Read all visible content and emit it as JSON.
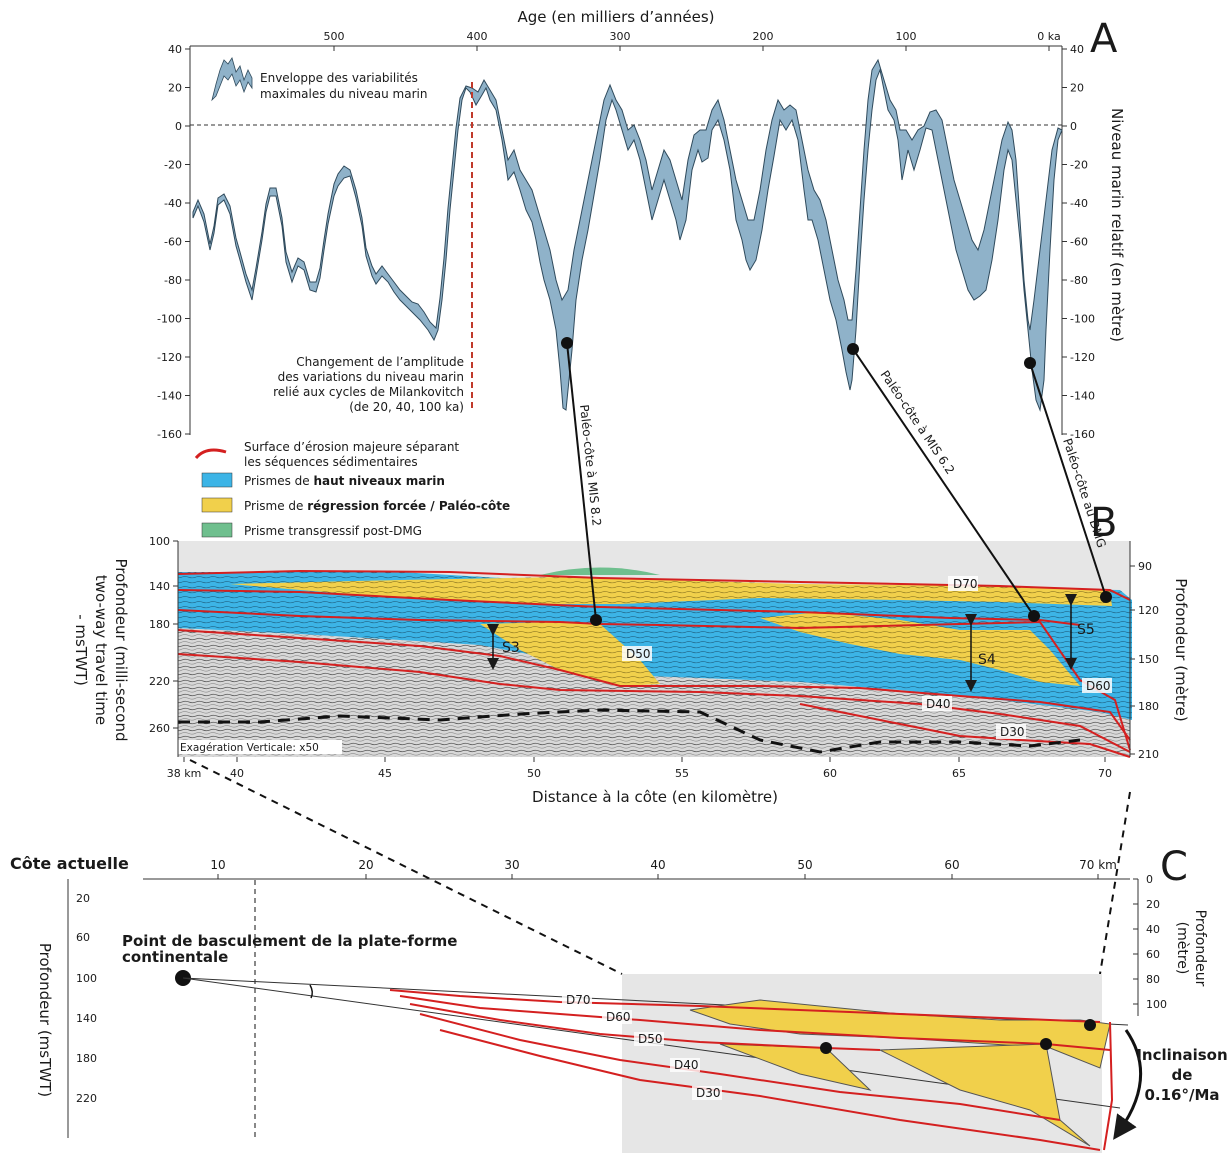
{
  "panel_a": {
    "letter": "A",
    "top_axis_title": "Age (en milliers d’années)",
    "top_ticks": [
      "500",
      "400",
      "300",
      "200",
      "100",
      "0 ka"
    ],
    "left_ticks": [
      "40",
      "20",
      "0",
      "-20",
      "-40",
      "-60",
      "-80",
      "-100",
      "-120",
      "-140",
      "-160"
    ],
    "right_ticks": [
      "40",
      "20",
      "0",
      "-20",
      "-40",
      "-60",
      "-80",
      "-100",
      "-120",
      "-140",
      "-160"
    ],
    "right_axis_title": "Niveau marin relatif (en mètre)",
    "envelope_legend": [
      "Enveloppe des variabilités",
      "maximales du niveau marin"
    ],
    "milankovitch_note": [
      "Changement de l’amplitude",
      "des variations du niveau marin",
      "relié aux cycles de Milankovitch",
      "(de 20, 40, 100 ka)"
    ],
    "colors": {
      "envelope": "#8fb2c9",
      "marker_line": "#c0392b"
    }
  },
  "legend": {
    "erosion": [
      "Surface d’érosion majeure séparant",
      "les séquences sédimentaires"
    ],
    "high_prefix": "Prismes de ",
    "high_bold": "haut niveaux marin",
    "forced_prefix": "Prisme de ",
    "forced_bold": "régression forcée / Paléo-côte",
    "transgressive": "Prisme transgressif post-DMG",
    "colors": {
      "erosion": "#d42020",
      "high": "#3cb4e6",
      "forced": "#f1d04b",
      "transgressive": "#6fbf8e"
    }
  },
  "paleo_labels": [
    "Paléo-côte à MIS 8.2",
    "Paléo-côte à MIS 6.2",
    "Paléo-côte au DMG"
  ],
  "panel_b": {
    "letter": "B",
    "left_axis_title": [
      "Profondeur (milli-second",
      "two-way travel time",
      "- msTWT)"
    ],
    "right_axis_title": "Profondeur (mètre)",
    "left_ticks": [
      "100",
      "140",
      "180",
      "220",
      "260"
    ],
    "right_ticks": [
      "90",
      "120",
      "150",
      "180",
      "210"
    ],
    "x_ticks": [
      "38 km",
      "40",
      "45",
      "50",
      "55",
      "60",
      "65",
      "70"
    ],
    "x_title": "Distance à la côte (en kilomètre)",
    "exaggeration": "Exagération Verticale: x50",
    "horizons": [
      "D70",
      "D60",
      "D50",
      "D40",
      "D30"
    ],
    "sequences": [
      "S3",
      "S4",
      "S5"
    ]
  },
  "panel_c": {
    "letter": "C",
    "coast_label": "Côte actuelle",
    "x_ticks": [
      "10",
      "20",
      "30",
      "40",
      "50",
      "60",
      "70 km"
    ],
    "left_ticks": [
      "20",
      "60",
      "100",
      "140",
      "180",
      "220"
    ],
    "left_axis_title": "Profondeur (msTWT)",
    "right_ticks": [
      "0",
      "20",
      "40",
      "60",
      "80",
      "100"
    ],
    "right_axis_title": [
      "Profondeur",
      "(mètre)"
    ],
    "pivot_label": [
      "Point de basculement de la plate-forme",
      "continentale"
    ],
    "horizons": [
      "D70",
      "D60",
      "D50",
      "D40",
      "D30"
    ],
    "tilt_label": [
      "Inclinaison",
      "de",
      "0.16°/Ma"
    ]
  }
}
